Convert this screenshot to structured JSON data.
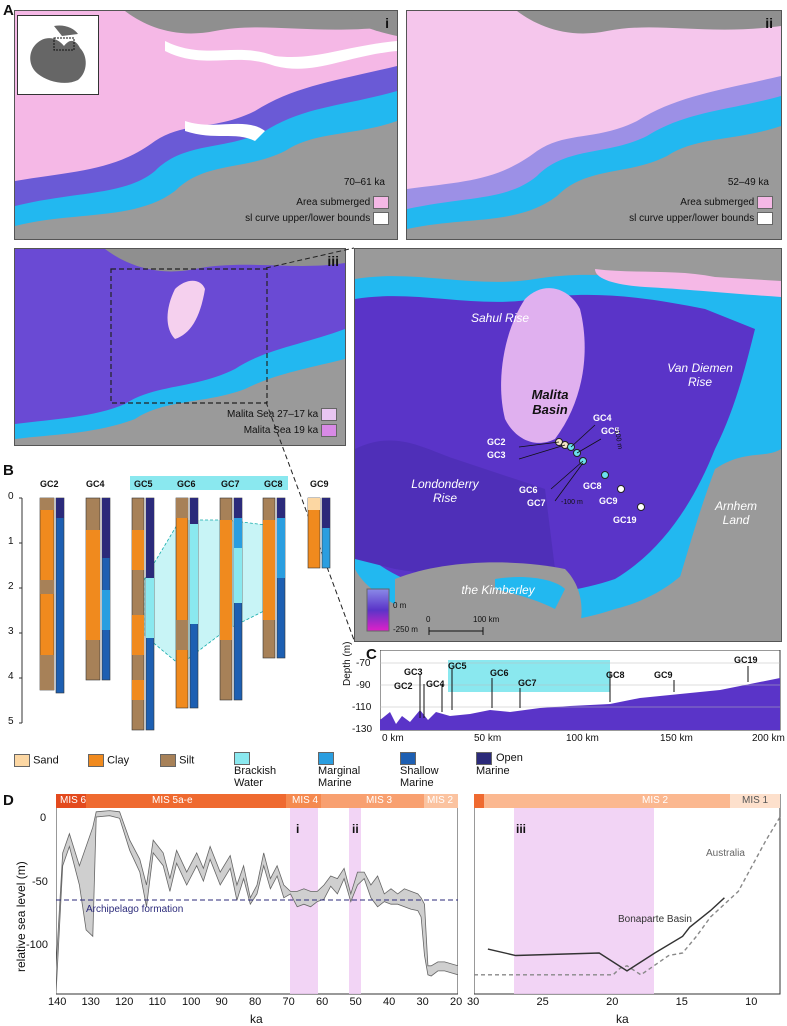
{
  "panels": {
    "a": "A",
    "b": "B",
    "c": "C",
    "d": "D"
  },
  "panel_a": {
    "i": {
      "roman": "i",
      "age": "70–61 ka",
      "legend": [
        "Area submerged",
        "sl curve upper/lower bounds"
      ]
    },
    "ii": {
      "roman": "ii",
      "age": "52–49 ka",
      "legend": [
        "Area submerged",
        "sl curve upper/lower bounds"
      ]
    },
    "iii": {
      "roman": "iii",
      "legend": [
        "Malita Sea 27–17 ka",
        "Malita Sea 19 ka"
      ]
    },
    "inset": {
      "place_names": [
        "Sahul Rise",
        "Van Diemen Rise",
        "Malita Basin",
        "Londonderry Rise",
        "Arnhem Land",
        "the Kimberley"
      ],
      "cores": [
        "GC4",
        "GC5",
        "GC2",
        "GC3",
        "GC6",
        "GC7",
        "GC8",
        "GC9",
        "GC19"
      ],
      "contours": [
        "-100 m",
        "-100 m"
      ],
      "depth_scale": [
        "0 m",
        "-250 m"
      ],
      "distance_scale": [
        "0",
        "100 km"
      ]
    },
    "colors": {
      "submerged": "#f5b8e6",
      "bounds": "#ffffff",
      "land": "#9a9a9a",
      "shallow": "#22b8f0",
      "deep": "#5a34c8"
    }
  },
  "panel_b": {
    "cores": [
      "GC2",
      "GC4",
      "GC5",
      "GC6",
      "GC7",
      "GC8",
      "GC9"
    ],
    "depth_ticks": [
      "0",
      "1",
      "2",
      "3",
      "4",
      "5"
    ]
  },
  "legend": {
    "items": [
      {
        "label": "Sand",
        "color": "#fcd7a3"
      },
      {
        "label": "Clay",
        "color": "#f08a1e"
      },
      {
        "label": "Silt",
        "color": "#a78158"
      },
      {
        "label": "Brackish Water",
        "color": "#8ae8ef"
      },
      {
        "label": "Marginal Marine",
        "color": "#2a9ee0"
      },
      {
        "label": "Shallow Marine",
        "color": "#1d5fb2"
      },
      {
        "label": "Open Marine",
        "color": "#2b2a7a"
      }
    ]
  },
  "panel_c": {
    "ylabel": "Depth (m)",
    "yticks": [
      "-70",
      "-90",
      "-110",
      "-130"
    ],
    "xticks": [
      "0 km",
      "50 km",
      "100 km",
      "150 km",
      "200 km"
    ],
    "cores": [
      "GC3",
      "GC2",
      "GC4",
      "GC5",
      "GC6",
      "GC7",
      "GC8",
      "GC9",
      "GC19"
    ]
  },
  "panel_d": {
    "ylabel": "relative sea level (m)",
    "left": {
      "xlabel": "ka",
      "xticks": [
        "140",
        "130",
        "120",
        "110",
        "100",
        "90",
        "80",
        "70",
        "60",
        "50",
        "40",
        "30",
        "20"
      ],
      "yticks": [
        "0",
        "-50",
        "-100"
      ],
      "mis": [
        "MIS 6",
        "MIS 5a-e",
        "MIS 4",
        "MIS 3",
        "MIS 2"
      ],
      "windows": [
        "i",
        "ii"
      ],
      "archipelago": "Archipelago formation"
    },
    "right": {
      "xlabel": "ka",
      "xticks": [
        "30",
        "25",
        "20",
        "15",
        "10"
      ],
      "mis": [
        "MIS 2",
        "MIS 1"
      ],
      "window": "iii",
      "series": [
        "Australia",
        "Bonaparte Basin"
      ]
    }
  },
  "chart_data": [
    {
      "type": "area",
      "xlabel": "ka",
      "ylabel": "relative sea level (m)",
      "xlim": [
        140,
        20
      ],
      "ylim": [
        -140,
        5
      ],
      "series": [
        {
          "values_x": [
            140,
            138,
            136,
            133,
            131,
            129,
            128,
            124,
            121,
            118,
            115,
            113,
            111,
            108,
            106,
            104,
            101,
            98,
            96,
            94,
            91,
            88,
            86,
            84,
            82,
            80,
            78,
            76,
            74,
            72,
            70,
            68,
            66,
            64,
            62,
            60,
            58,
            56,
            54,
            52,
            50,
            48,
            46,
            44,
            42,
            40,
            38,
            36,
            34,
            32,
            31,
            30,
            29,
            28,
            26,
            24,
            20
          ],
          "upper": [
            -120,
            -30,
            -15,
            -40,
            -25,
            -10,
            2,
            3,
            2,
            -20,
            -35,
            -55,
            -20,
            -30,
            -50,
            -28,
            -45,
            -30,
            -42,
            -25,
            -45,
            -32,
            -55,
            -40,
            -65,
            -55,
            -30,
            -50,
            -40,
            -55,
            -60,
            -60,
            -58,
            -60,
            -60,
            -55,
            -48,
            -50,
            -42,
            -62,
            -45,
            -45,
            -55,
            -48,
            -62,
            -58,
            -62,
            -58,
            -60,
            -62,
            -65,
            -70,
            -118,
            -118,
            -115,
            -115,
            -118
          ],
          "lower": [
            -140,
            -40,
            -25,
            -55,
            -90,
            -95,
            -2,
            -1,
            -3,
            -28,
            -45,
            -72,
            -30,
            -40,
            -60,
            -38,
            -55,
            -40,
            -52,
            -35,
            -55,
            -42,
            -67,
            -50,
            -70,
            -62,
            -40,
            -58,
            -48,
            -65,
            -62,
            -72,
            -70,
            -72,
            -68,
            -66,
            -56,
            -62,
            -50,
            -68,
            -55,
            -50,
            -65,
            -72,
            -68,
            -70,
            -70,
            -72,
            -74,
            -75,
            -80,
            -110,
            -125,
            -126,
            -122,
            -122,
            -125
          ]
        }
      ],
      "annotations": [
        "Archipelago formation"
      ]
    },
    {
      "type": "line",
      "xlabel": "ka",
      "xlim": [
        30,
        8
      ],
      "ylim": [
        -140,
        5
      ],
      "series": [
        {
          "name": "Australia",
          "x": [
            30,
            27,
            22,
            20,
            19.5,
            19,
            18,
            16,
            15,
            14,
            13,
            12,
            11,
            10,
            9,
            8
          ],
          "values": [
            -125,
            -125,
            -125,
            -125,
            -120,
            -118,
            -125,
            -110,
            -108,
            -95,
            -80,
            -70,
            -60,
            -40,
            -20,
            -2
          ]
        },
        {
          "name": "Bonaparte Basin",
          "x": [
            29,
            27,
            21,
            19,
            17,
            15,
            14.5,
            13,
            12
          ],
          "values": [
            -105,
            -110,
            -108,
            -122,
            -108,
            -95,
            -88,
            -75,
            -65
          ]
        }
      ]
    }
  ]
}
